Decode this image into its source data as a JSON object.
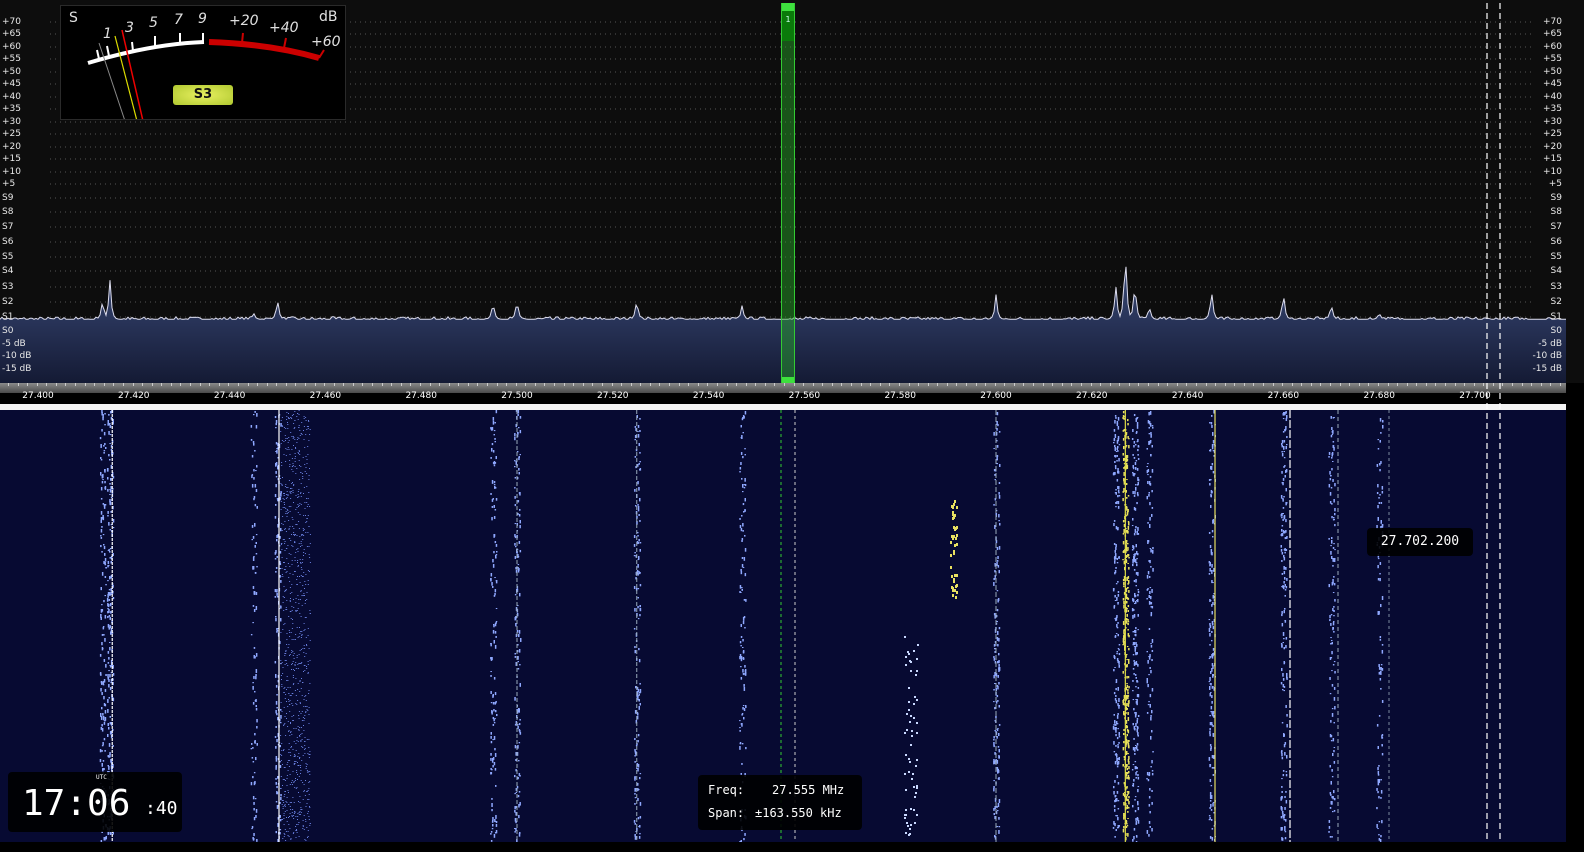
{
  "spectrum": {
    "level_labels": [
      "+70",
      "+65",
      "+60",
      "+55",
      "+50",
      "+45",
      "+40",
      "+35",
      "+30",
      "+25",
      "+20",
      "+15",
      "+10",
      "+5",
      "S9",
      "S8",
      "S7",
      "S6",
      "S5",
      "S4",
      "S3",
      "S2",
      "S1",
      "S0",
      "-5 dB",
      "-10 dB",
      "-15 dB"
    ],
    "freq_labels": [
      "27.400",
      "27.420",
      "27.440",
      "27.460",
      "27.480",
      "27.500",
      "27.520",
      "27.540",
      "27.560",
      "27.580",
      "27.600",
      "27.620",
      "27.640",
      "27.660",
      "27.680",
      "27.700"
    ],
    "noise_floor_db": 5,
    "signals": [
      {
        "freq": 27.415,
        "level_db": 22
      },
      {
        "freq": 27.4135,
        "level_db": 14
      },
      {
        "freq": 27.45,
        "level_db": 14
      },
      {
        "freq": 27.445,
        "level_db": 8
      },
      {
        "freq": 27.495,
        "level_db": 13
      },
      {
        "freq": 27.5,
        "level_db": 14
      },
      {
        "freq": 27.525,
        "level_db": 14
      },
      {
        "freq": 27.547,
        "level_db": 11
      },
      {
        "freq": 27.6,
        "level_db": 15
      },
      {
        "freq": 27.627,
        "level_db": 36
      },
      {
        "freq": 27.625,
        "level_db": 20
      },
      {
        "freq": 27.629,
        "level_db": 22
      },
      {
        "freq": 27.632,
        "level_db": 11
      },
      {
        "freq": 27.645,
        "level_db": 18
      },
      {
        "freq": 27.66,
        "level_db": 17
      },
      {
        "freq": 27.67,
        "level_db": 12
      },
      {
        "freq": 27.68,
        "level_db": 8
      }
    ],
    "filter_label": "1",
    "accent_color": "#3ee03e"
  },
  "smeter": {
    "unit_left": "S",
    "unit_right": "dB",
    "scale_s": [
      "1",
      "3",
      "5",
      "7",
      "9"
    ],
    "scale_db": [
      "+20",
      "+40",
      "+60"
    ],
    "reading": "S3"
  },
  "clock": {
    "zone": "UTC",
    "hours_minutes": "17:06",
    "seconds": ":40"
  },
  "info": {
    "freq_label": "Freq:",
    "freq_value": "27.555 MHz",
    "span_label": "Span:",
    "span_value": "±163.550 kHz"
  },
  "cursor_tooltip": "27.702.200"
}
